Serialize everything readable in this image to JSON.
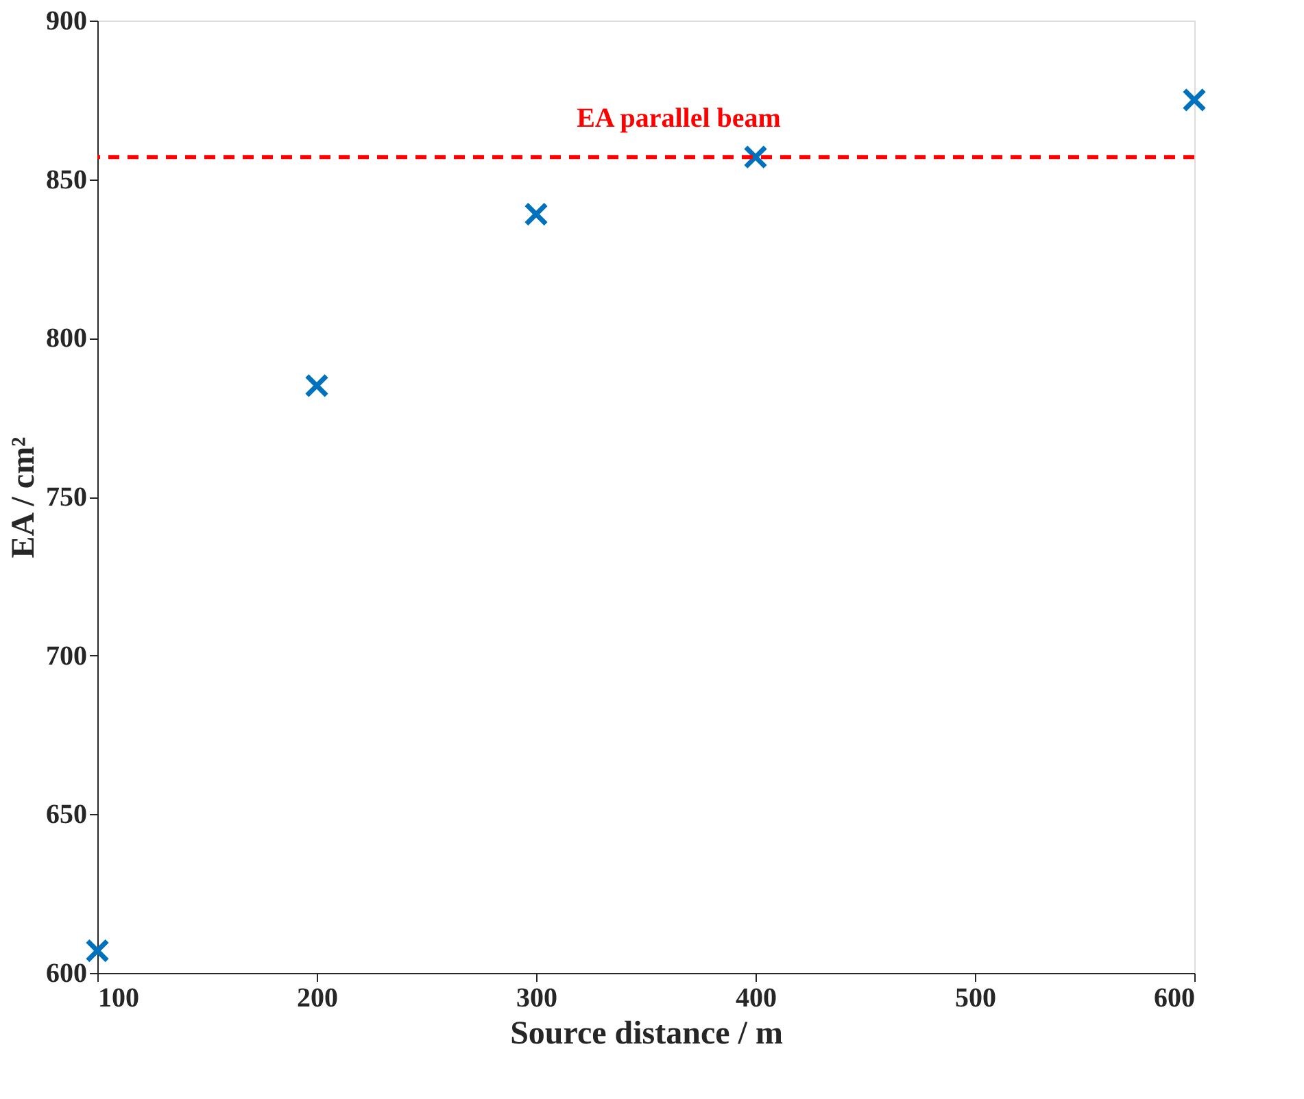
{
  "chart_data": {
    "type": "scatter",
    "xlabel": "Source distance / m",
    "ylabel": "EA / cm²",
    "x": [
      100,
      200,
      300,
      400,
      600
    ],
    "series": [
      {
        "color": "#0072bd",
        "values": [
          607,
          785,
          839,
          857,
          875
        ]
      }
    ],
    "xlim": [
      100,
      600
    ],
    "xticks": [
      100,
      200,
      300,
      400,
      500,
      600
    ],
    "ylim": [
      600,
      900
    ],
    "yticks": [
      600,
      650,
      700,
      750,
      800,
      850,
      900
    ],
    "ref_lines": [
      {
        "axis": "y",
        "value": 857,
        "label": "EA parallel beam",
        "color": "#ff0000",
        "line_style": "dashed"
      }
    ],
    "marker": "cross",
    "grid": false
  }
}
